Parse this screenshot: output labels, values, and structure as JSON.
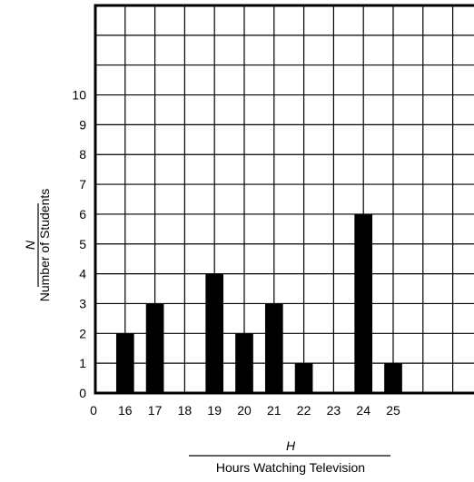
{
  "chart_data": {
    "type": "bar",
    "categories": [
      "16",
      "17",
      "18",
      "19",
      "20",
      "21",
      "22",
      "23",
      "24",
      "25"
    ],
    "values": [
      2,
      3,
      0,
      4,
      2,
      3,
      1,
      0,
      6,
      1
    ],
    "x_origin_label": "0",
    "y_ticks": [
      "0",
      "1",
      "2",
      "3",
      "4",
      "5",
      "6",
      "7",
      "8",
      "9",
      "10"
    ],
    "ylim": [
      0,
      13
    ],
    "grid": true,
    "bar_color": "#000000",
    "xlabel_var": "H",
    "xlabel": "Hours Watching Television",
    "ylabel_var": "N",
    "ylabel": "Number of Students"
  }
}
